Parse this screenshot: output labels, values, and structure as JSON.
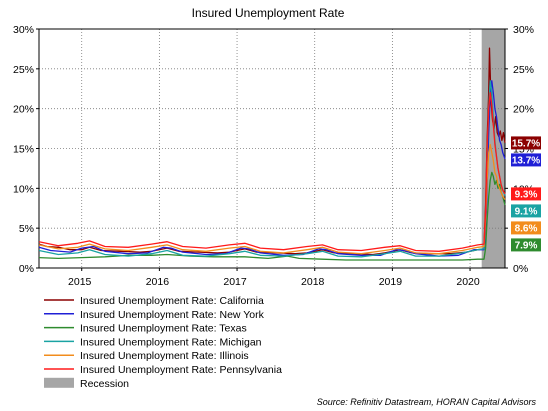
{
  "chart_data": {
    "type": "line",
    "title": "Insured Unemployment Rate",
    "xlabel": "",
    "ylabel": "",
    "y_axis": {
      "min": 0,
      "max": 30,
      "step": 5,
      "tick_labels": [
        "0%",
        "5%",
        "10%",
        "15%",
        "20%",
        "25%",
        "30%"
      ],
      "mirrored_right": true
    },
    "x_axis": {
      "start": 2014.45,
      "end": 2020.45,
      "year_labels": [
        {
          "label": "2015",
          "year": 2015
        },
        {
          "label": "2016",
          "year": 2016
        },
        {
          "label": "2017",
          "year": 2017
        },
        {
          "label": "2018",
          "year": 2018
        },
        {
          "label": "2019",
          "year": 2019
        },
        {
          "label": "2020",
          "year": 2020
        }
      ]
    },
    "grid": "vertical dotted at year boundaries, horizontal dotted at each y tick",
    "recession": {
      "label": "Recession",
      "start": 2020.15,
      "end": 2020.45,
      "color": "#a6a6a6"
    },
    "legend_position": "bottom-left",
    "series": [
      {
        "name": "Insured Unemployment Rate: California",
        "color": "#8b0000",
        "end_label": "15.7%",
        "end_label_value": 15.7,
        "points": [
          [
            2014.45,
            3.0
          ],
          [
            2014.55,
            2.7
          ],
          [
            2014.7,
            2.6
          ],
          [
            2014.85,
            2.3
          ],
          [
            2015.0,
            2.3
          ],
          [
            2015.1,
            2.6
          ],
          [
            2015.25,
            2.2
          ],
          [
            2015.5,
            2.1
          ],
          [
            2015.75,
            2.0
          ],
          [
            2015.9,
            2.1
          ],
          [
            2016.1,
            2.5
          ],
          [
            2016.25,
            2.1
          ],
          [
            2016.5,
            2.0
          ],
          [
            2016.75,
            1.9
          ],
          [
            2016.9,
            2.0
          ],
          [
            2017.1,
            2.4
          ],
          [
            2017.25,
            2.0
          ],
          [
            2017.5,
            1.9
          ],
          [
            2017.75,
            1.8
          ],
          [
            2017.9,
            1.9
          ],
          [
            2018.1,
            2.3
          ],
          [
            2018.25,
            1.9
          ],
          [
            2018.5,
            1.8
          ],
          [
            2018.75,
            1.7
          ],
          [
            2018.9,
            1.9
          ],
          [
            2019.1,
            2.3
          ],
          [
            2019.25,
            1.9
          ],
          [
            2019.5,
            1.8
          ],
          [
            2019.75,
            1.8
          ],
          [
            2019.95,
            2.0
          ],
          [
            2020.1,
            2.3
          ],
          [
            2020.18,
            2.4
          ],
          [
            2020.2,
            8.0
          ],
          [
            2020.22,
            16.0
          ],
          [
            2020.24,
            22.0
          ],
          [
            2020.25,
            27.6
          ],
          [
            2020.27,
            21.0
          ],
          [
            2020.29,
            18.5
          ],
          [
            2020.31,
            17.5
          ],
          [
            2020.33,
            19.0
          ],
          [
            2020.35,
            17.0
          ],
          [
            2020.37,
            16.5
          ],
          [
            2020.39,
            17.2
          ],
          [
            2020.41,
            16.0
          ],
          [
            2020.43,
            17.0
          ],
          [
            2020.45,
            15.7
          ]
        ]
      },
      {
        "name": "Insured Unemployment Rate: New York",
        "color": "#1f1fd6",
        "end_label": "13.7%",
        "end_label_value": 13.7,
        "points": [
          [
            2014.45,
            2.6
          ],
          [
            2014.6,
            2.2
          ],
          [
            2014.85,
            2.0
          ],
          [
            2015.0,
            2.5
          ],
          [
            2015.15,
            2.7
          ],
          [
            2015.3,
            2.1
          ],
          [
            2015.6,
            1.8
          ],
          [
            2015.85,
            1.9
          ],
          [
            2016.05,
            2.6
          ],
          [
            2016.15,
            2.5
          ],
          [
            2016.3,
            2.0
          ],
          [
            2016.6,
            1.7
          ],
          [
            2016.85,
            1.8
          ],
          [
            2017.05,
            2.5
          ],
          [
            2017.15,
            2.4
          ],
          [
            2017.3,
            1.9
          ],
          [
            2017.6,
            1.6
          ],
          [
            2017.85,
            1.7
          ],
          [
            2018.05,
            2.4
          ],
          [
            2018.15,
            2.3
          ],
          [
            2018.3,
            1.8
          ],
          [
            2018.6,
            1.6
          ],
          [
            2018.85,
            1.6
          ],
          [
            2019.05,
            2.3
          ],
          [
            2019.15,
            2.2
          ],
          [
            2019.3,
            1.8
          ],
          [
            2019.6,
            1.5
          ],
          [
            2019.85,
            1.6
          ],
          [
            2020.05,
            2.3
          ],
          [
            2020.18,
            2.3
          ],
          [
            2020.2,
            4.0
          ],
          [
            2020.22,
            10.0
          ],
          [
            2020.24,
            17.0
          ],
          [
            2020.26,
            21.5
          ],
          [
            2020.28,
            23.5
          ],
          [
            2020.3,
            22.0
          ],
          [
            2020.32,
            20.0
          ],
          [
            2020.34,
            19.0
          ],
          [
            2020.36,
            17.5
          ],
          [
            2020.38,
            16.0
          ],
          [
            2020.4,
            15.5
          ],
          [
            2020.42,
            14.5
          ],
          [
            2020.45,
            13.7
          ]
        ]
      },
      {
        "name": "Insured Unemployment Rate: Texas",
        "color": "#2e8b2e",
        "end_label": "7.9%",
        "end_label_value": 7.9,
        "points": [
          [
            2014.45,
            1.3
          ],
          [
            2014.7,
            1.2
          ],
          [
            2015.0,
            1.3
          ],
          [
            2015.3,
            1.4
          ],
          [
            2015.6,
            1.6
          ],
          [
            2015.9,
            1.6
          ],
          [
            2016.1,
            1.7
          ],
          [
            2016.4,
            1.5
          ],
          [
            2016.7,
            1.4
          ],
          [
            2016.9,
            1.4
          ],
          [
            2017.1,
            1.4
          ],
          [
            2017.4,
            1.2
          ],
          [
            2017.65,
            1.5
          ],
          [
            2017.8,
            1.2
          ],
          [
            2018.1,
            1.1
          ],
          [
            2018.4,
            1.0
          ],
          [
            2018.7,
            1.0
          ],
          [
            2019.0,
            1.0
          ],
          [
            2019.3,
            1.0
          ],
          [
            2019.6,
            1.0
          ],
          [
            2019.9,
            1.0
          ],
          [
            2020.1,
            1.1
          ],
          [
            2020.18,
            1.1
          ],
          [
            2020.2,
            2.5
          ],
          [
            2020.22,
            6.0
          ],
          [
            2020.24,
            9.0
          ],
          [
            2020.26,
            11.0
          ],
          [
            2020.28,
            12.0
          ],
          [
            2020.3,
            11.5
          ],
          [
            2020.32,
            10.5
          ],
          [
            2020.34,
            11.0
          ],
          [
            2020.36,
            10.0
          ],
          [
            2020.38,
            10.5
          ],
          [
            2020.4,
            9.5
          ],
          [
            2020.42,
            9.0
          ],
          [
            2020.45,
            7.9
          ]
        ]
      },
      {
        "name": "Insured Unemployment Rate: Michigan",
        "color": "#1aa3a3",
        "end_label": "9.1%",
        "end_label_value": 9.1,
        "points": [
          [
            2014.45,
            2.2
          ],
          [
            2014.7,
            1.7
          ],
          [
            2014.95,
            1.9
          ],
          [
            2015.1,
            2.3
          ],
          [
            2015.3,
            1.7
          ],
          [
            2015.6,
            1.5
          ],
          [
            2015.9,
            1.8
          ],
          [
            2016.1,
            2.2
          ],
          [
            2016.3,
            1.6
          ],
          [
            2016.6,
            1.5
          ],
          [
            2016.9,
            1.8
          ],
          [
            2017.1,
            2.1
          ],
          [
            2017.3,
            1.6
          ],
          [
            2017.6,
            1.5
          ],
          [
            2017.9,
            1.8
          ],
          [
            2018.1,
            2.1
          ],
          [
            2018.3,
            1.5
          ],
          [
            2018.6,
            1.4
          ],
          [
            2018.9,
            1.8
          ],
          [
            2019.1,
            2.1
          ],
          [
            2019.3,
            1.5
          ],
          [
            2019.6,
            1.5
          ],
          [
            2019.9,
            1.9
          ],
          [
            2020.1,
            2.3
          ],
          [
            2020.18,
            2.4
          ],
          [
            2020.2,
            6.0
          ],
          [
            2020.22,
            14.0
          ],
          [
            2020.24,
            20.0
          ],
          [
            2020.26,
            23.5
          ],
          [
            2020.28,
            22.0
          ],
          [
            2020.3,
            19.0
          ],
          [
            2020.32,
            16.0
          ],
          [
            2020.34,
            14.0
          ],
          [
            2020.36,
            12.5
          ],
          [
            2020.38,
            11.5
          ],
          [
            2020.4,
            10.5
          ],
          [
            2020.42,
            9.8
          ],
          [
            2020.45,
            9.1
          ]
        ]
      },
      {
        "name": "Insured Unemployment Rate: Illinois",
        "color": "#f28c1c",
        "end_label": "8.6%",
        "end_label_value": 8.6,
        "points": [
          [
            2014.45,
            2.9
          ],
          [
            2014.7,
            2.4
          ],
          [
            2014.95,
            2.6
          ],
          [
            2015.1,
            3.0
          ],
          [
            2015.3,
            2.4
          ],
          [
            2015.6,
            2.2
          ],
          [
            2015.9,
            2.6
          ],
          [
            2016.1,
            2.9
          ],
          [
            2016.3,
            2.3
          ],
          [
            2016.6,
            2.1
          ],
          [
            2016.9,
            2.5
          ],
          [
            2017.1,
            2.7
          ],
          [
            2017.3,
            2.1
          ],
          [
            2017.6,
            1.9
          ],
          [
            2017.9,
            2.3
          ],
          [
            2018.1,
            2.6
          ],
          [
            2018.3,
            2.0
          ],
          [
            2018.6,
            1.8
          ],
          [
            2018.9,
            2.2
          ],
          [
            2019.1,
            2.5
          ],
          [
            2019.3,
            1.9
          ],
          [
            2019.6,
            1.8
          ],
          [
            2019.9,
            2.2
          ],
          [
            2020.1,
            2.6
          ],
          [
            2020.18,
            2.7
          ],
          [
            2020.2,
            6.0
          ],
          [
            2020.22,
            11.0
          ],
          [
            2020.24,
            14.5
          ],
          [
            2020.26,
            15.5
          ],
          [
            2020.28,
            14.5
          ],
          [
            2020.3,
            13.5
          ],
          [
            2020.32,
            12.0
          ],
          [
            2020.34,
            11.5
          ],
          [
            2020.36,
            10.5
          ],
          [
            2020.38,
            10.0
          ],
          [
            2020.4,
            9.5
          ],
          [
            2020.42,
            9.0
          ],
          [
            2020.45,
            8.6
          ]
        ]
      },
      {
        "name": "Insured Unemployment Rate: Pennsylvania",
        "color": "#ff1a1a",
        "end_label": "9.3%",
        "end_label_value": 9.3,
        "points": [
          [
            2014.45,
            3.3
          ],
          [
            2014.7,
            2.8
          ],
          [
            2014.95,
            3.1
          ],
          [
            2015.1,
            3.4
          ],
          [
            2015.3,
            2.7
          ],
          [
            2015.6,
            2.6
          ],
          [
            2015.9,
            3.0
          ],
          [
            2016.1,
            3.3
          ],
          [
            2016.3,
            2.7
          ],
          [
            2016.6,
            2.5
          ],
          [
            2016.9,
            2.9
          ],
          [
            2017.1,
            3.1
          ],
          [
            2017.3,
            2.5
          ],
          [
            2017.6,
            2.3
          ],
          [
            2017.9,
            2.7
          ],
          [
            2018.1,
            2.9
          ],
          [
            2018.3,
            2.3
          ],
          [
            2018.6,
            2.2
          ],
          [
            2018.9,
            2.6
          ],
          [
            2019.1,
            2.8
          ],
          [
            2019.3,
            2.2
          ],
          [
            2019.6,
            2.1
          ],
          [
            2019.9,
            2.5
          ],
          [
            2020.1,
            2.9
          ],
          [
            2020.18,
            3.0
          ],
          [
            2020.2,
            7.0
          ],
          [
            2020.22,
            15.0
          ],
          [
            2020.24,
            20.0
          ],
          [
            2020.26,
            22.0
          ],
          [
            2020.28,
            20.5
          ],
          [
            2020.3,
            18.0
          ],
          [
            2020.32,
            15.5
          ],
          [
            2020.34,
            14.0
          ],
          [
            2020.36,
            12.5
          ],
          [
            2020.38,
            11.5
          ],
          [
            2020.4,
            10.5
          ],
          [
            2020.42,
            9.8
          ],
          [
            2020.45,
            9.3
          ]
        ]
      }
    ],
    "source": "Source: Refinitiv Datastream, HORAN Capital Advisors"
  }
}
